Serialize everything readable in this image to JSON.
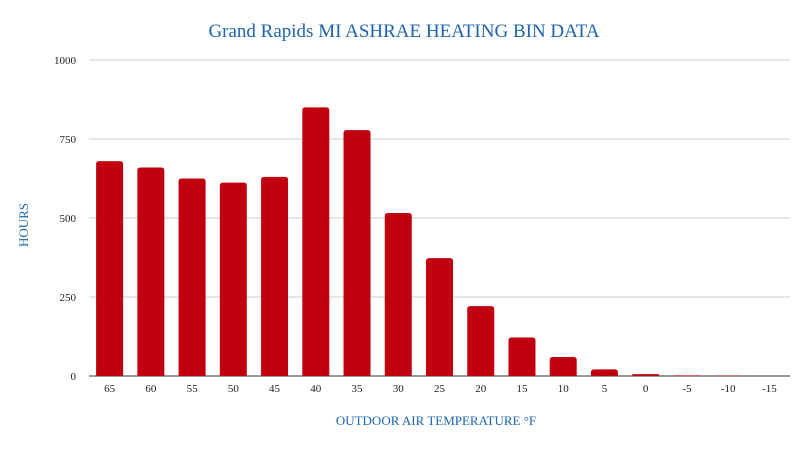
{
  "chart_data": {
    "type": "bar",
    "title": "Grand Rapids MI ASHRAE HEATING BIN DATA",
    "xlabel": "OUTDOOR AIR TEMPERATURE °F",
    "ylabel": "HOURS",
    "categories": [
      "65",
      "60",
      "55",
      "50",
      "45",
      "40",
      "35",
      "30",
      "25",
      "20",
      "15",
      "10",
      "5",
      "0",
      "-5",
      "-10",
      "-15"
    ],
    "values": [
      680,
      660,
      625,
      612,
      630,
      850,
      778,
      516,
      373,
      221,
      122,
      60,
      21,
      6,
      2,
      1,
      0
    ],
    "ylim": [
      0,
      1000
    ],
    "yticks": [
      "0",
      "250",
      "500",
      "750",
      "1000"
    ],
    "grid": true,
    "legend": "none",
    "bar_color": "#c0000f"
  }
}
